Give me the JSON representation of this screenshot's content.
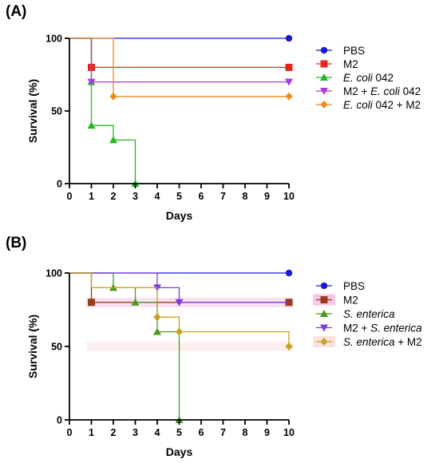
{
  "chart_data": [
    {
      "panel_label": "(A)",
      "type": "line",
      "step": true,
      "xlabel": "Days",
      "ylabel": "Survival (%)",
      "xlim": [
        0,
        10
      ],
      "ylim": [
        0,
        100
      ],
      "xticks": [
        0,
        1,
        2,
        3,
        4,
        5,
        6,
        7,
        8,
        9,
        10
      ],
      "yticks": [
        0,
        50,
        100
      ],
      "legend_position": "right",
      "series": [
        {
          "name": "PBS",
          "legend_parts": [
            {
              "text": "PBS",
              "italic": false
            }
          ],
          "color": "#1a1ad6",
          "marker": "circle",
          "x": [
            0,
            10
          ],
          "y": [
            100,
            100
          ],
          "markers": [
            [
              10,
              100
            ]
          ]
        },
        {
          "name": "M2",
          "legend_parts": [
            {
              "text": "M2",
              "italic": false
            }
          ],
          "color": "#e8241c",
          "marker": "square",
          "x": [
            0,
            1,
            10
          ],
          "y": [
            100,
            80,
            80
          ],
          "markers": [
            [
              1,
              80
            ],
            [
              10,
              80
            ]
          ]
        },
        {
          "name": "E. coli 042",
          "legend_parts": [
            {
              "text": "E. coli",
              "italic": true
            },
            {
              "text": " 042",
              "italic": false
            }
          ],
          "color": "#22b822",
          "marker": "triangle-up",
          "x": [
            0,
            1,
            2,
            3
          ],
          "y": [
            100,
            40,
            30,
            0
          ],
          "markers": [
            [
              1,
              70
            ],
            [
              1,
              40
            ],
            [
              2,
              30
            ],
            [
              3,
              0
            ]
          ]
        },
        {
          "name": "M2 + E. coli 042",
          "legend_parts": [
            {
              "text": "M2 + ",
              "italic": false
            },
            {
              "text": "E. coli",
              "italic": true
            },
            {
              "text": " 042",
              "italic": false
            }
          ],
          "color": "#a83ae0",
          "marker": "triangle-down",
          "x": [
            0,
            1,
            10
          ],
          "y": [
            100,
            70,
            70
          ],
          "markers": [
            [
              1,
              70
            ],
            [
              10,
              70
            ]
          ]
        },
        {
          "name": "E. coli 042 + M2",
          "legend_parts": [
            {
              "text": "E. coli",
              "italic": true
            },
            {
              "text": " 042 + M2",
              "italic": false
            }
          ],
          "color": "#f08a1c",
          "marker": "diamond",
          "x": [
            0,
            2,
            10
          ],
          "y": [
            100,
            60,
            60
          ],
          "markers": [
            [
              2,
              60
            ],
            [
              10,
              60
            ]
          ]
        }
      ]
    },
    {
      "panel_label": "(B)",
      "type": "line",
      "step": true,
      "xlabel": "Days",
      "ylabel": "Survival (%)",
      "xlim": [
        0,
        10
      ],
      "ylim": [
        0,
        100
      ],
      "xticks": [
        0,
        1,
        2,
        3,
        4,
        5,
        6,
        7,
        8,
        9,
        10
      ],
      "yticks": [
        0,
        50,
        100
      ],
      "legend_position": "right",
      "series": [
        {
          "name": "PBS",
          "legend_parts": [
            {
              "text": "PBS",
              "italic": false
            }
          ],
          "color": "#1a1ad6",
          "marker": "circle",
          "x": [
            0,
            10
          ],
          "y": [
            100,
            100
          ],
          "markers": [
            [
              10,
              100
            ]
          ]
        },
        {
          "name": "M2",
          "legend_parts": [
            {
              "text": "M2",
              "italic": false
            }
          ],
          "color": "#9c3a1a",
          "marker": "square",
          "highlight": "#f5c8e8",
          "x": [
            0,
            1,
            10
          ],
          "y": [
            100,
            80,
            80
          ],
          "markers": [
            [
              1,
              80
            ],
            [
              10,
              80
            ]
          ]
        },
        {
          "name": "S. enterica",
          "legend_parts": [
            {
              "text": "S. enterica",
              "italic": true
            }
          ],
          "color": "#4a9a1c",
          "marker": "triangle-up",
          "x": [
            0,
            2,
            3,
            4,
            5
          ],
          "y": [
            100,
            90,
            80,
            60,
            0
          ],
          "markers": [
            [
              2,
              90
            ],
            [
              3,
              80
            ],
            [
              4,
              60
            ],
            [
              5,
              0
            ]
          ]
        },
        {
          "name": "M2 + S. enterica",
          "legend_parts": [
            {
              "text": "M2 + ",
              "italic": false
            },
            {
              "text": "S. enterica",
              "italic": true
            }
          ],
          "color": "#7a3ae8",
          "marker": "triangle-down",
          "x": [
            0,
            4,
            5,
            10
          ],
          "y": [
            100,
            90,
            80,
            80
          ],
          "markers": [
            [
              4,
              90
            ],
            [
              5,
              80
            ]
          ]
        },
        {
          "name": "S. enterica + M2",
          "legend_parts": [
            {
              "text": "S. enterica",
              "italic": true
            },
            {
              "text": " + M2",
              "italic": false
            }
          ],
          "color": "#c8a21a",
          "marker": "diamond",
          "highlight": "#fbe2e2",
          "x": [
            0,
            1,
            4,
            5,
            10
          ],
          "y": [
            100,
            90,
            70,
            60,
            50
          ],
          "markers": [
            [
              4,
              70
            ],
            [
              5,
              60
            ],
            [
              10,
              50
            ]
          ]
        }
      ]
    }
  ]
}
